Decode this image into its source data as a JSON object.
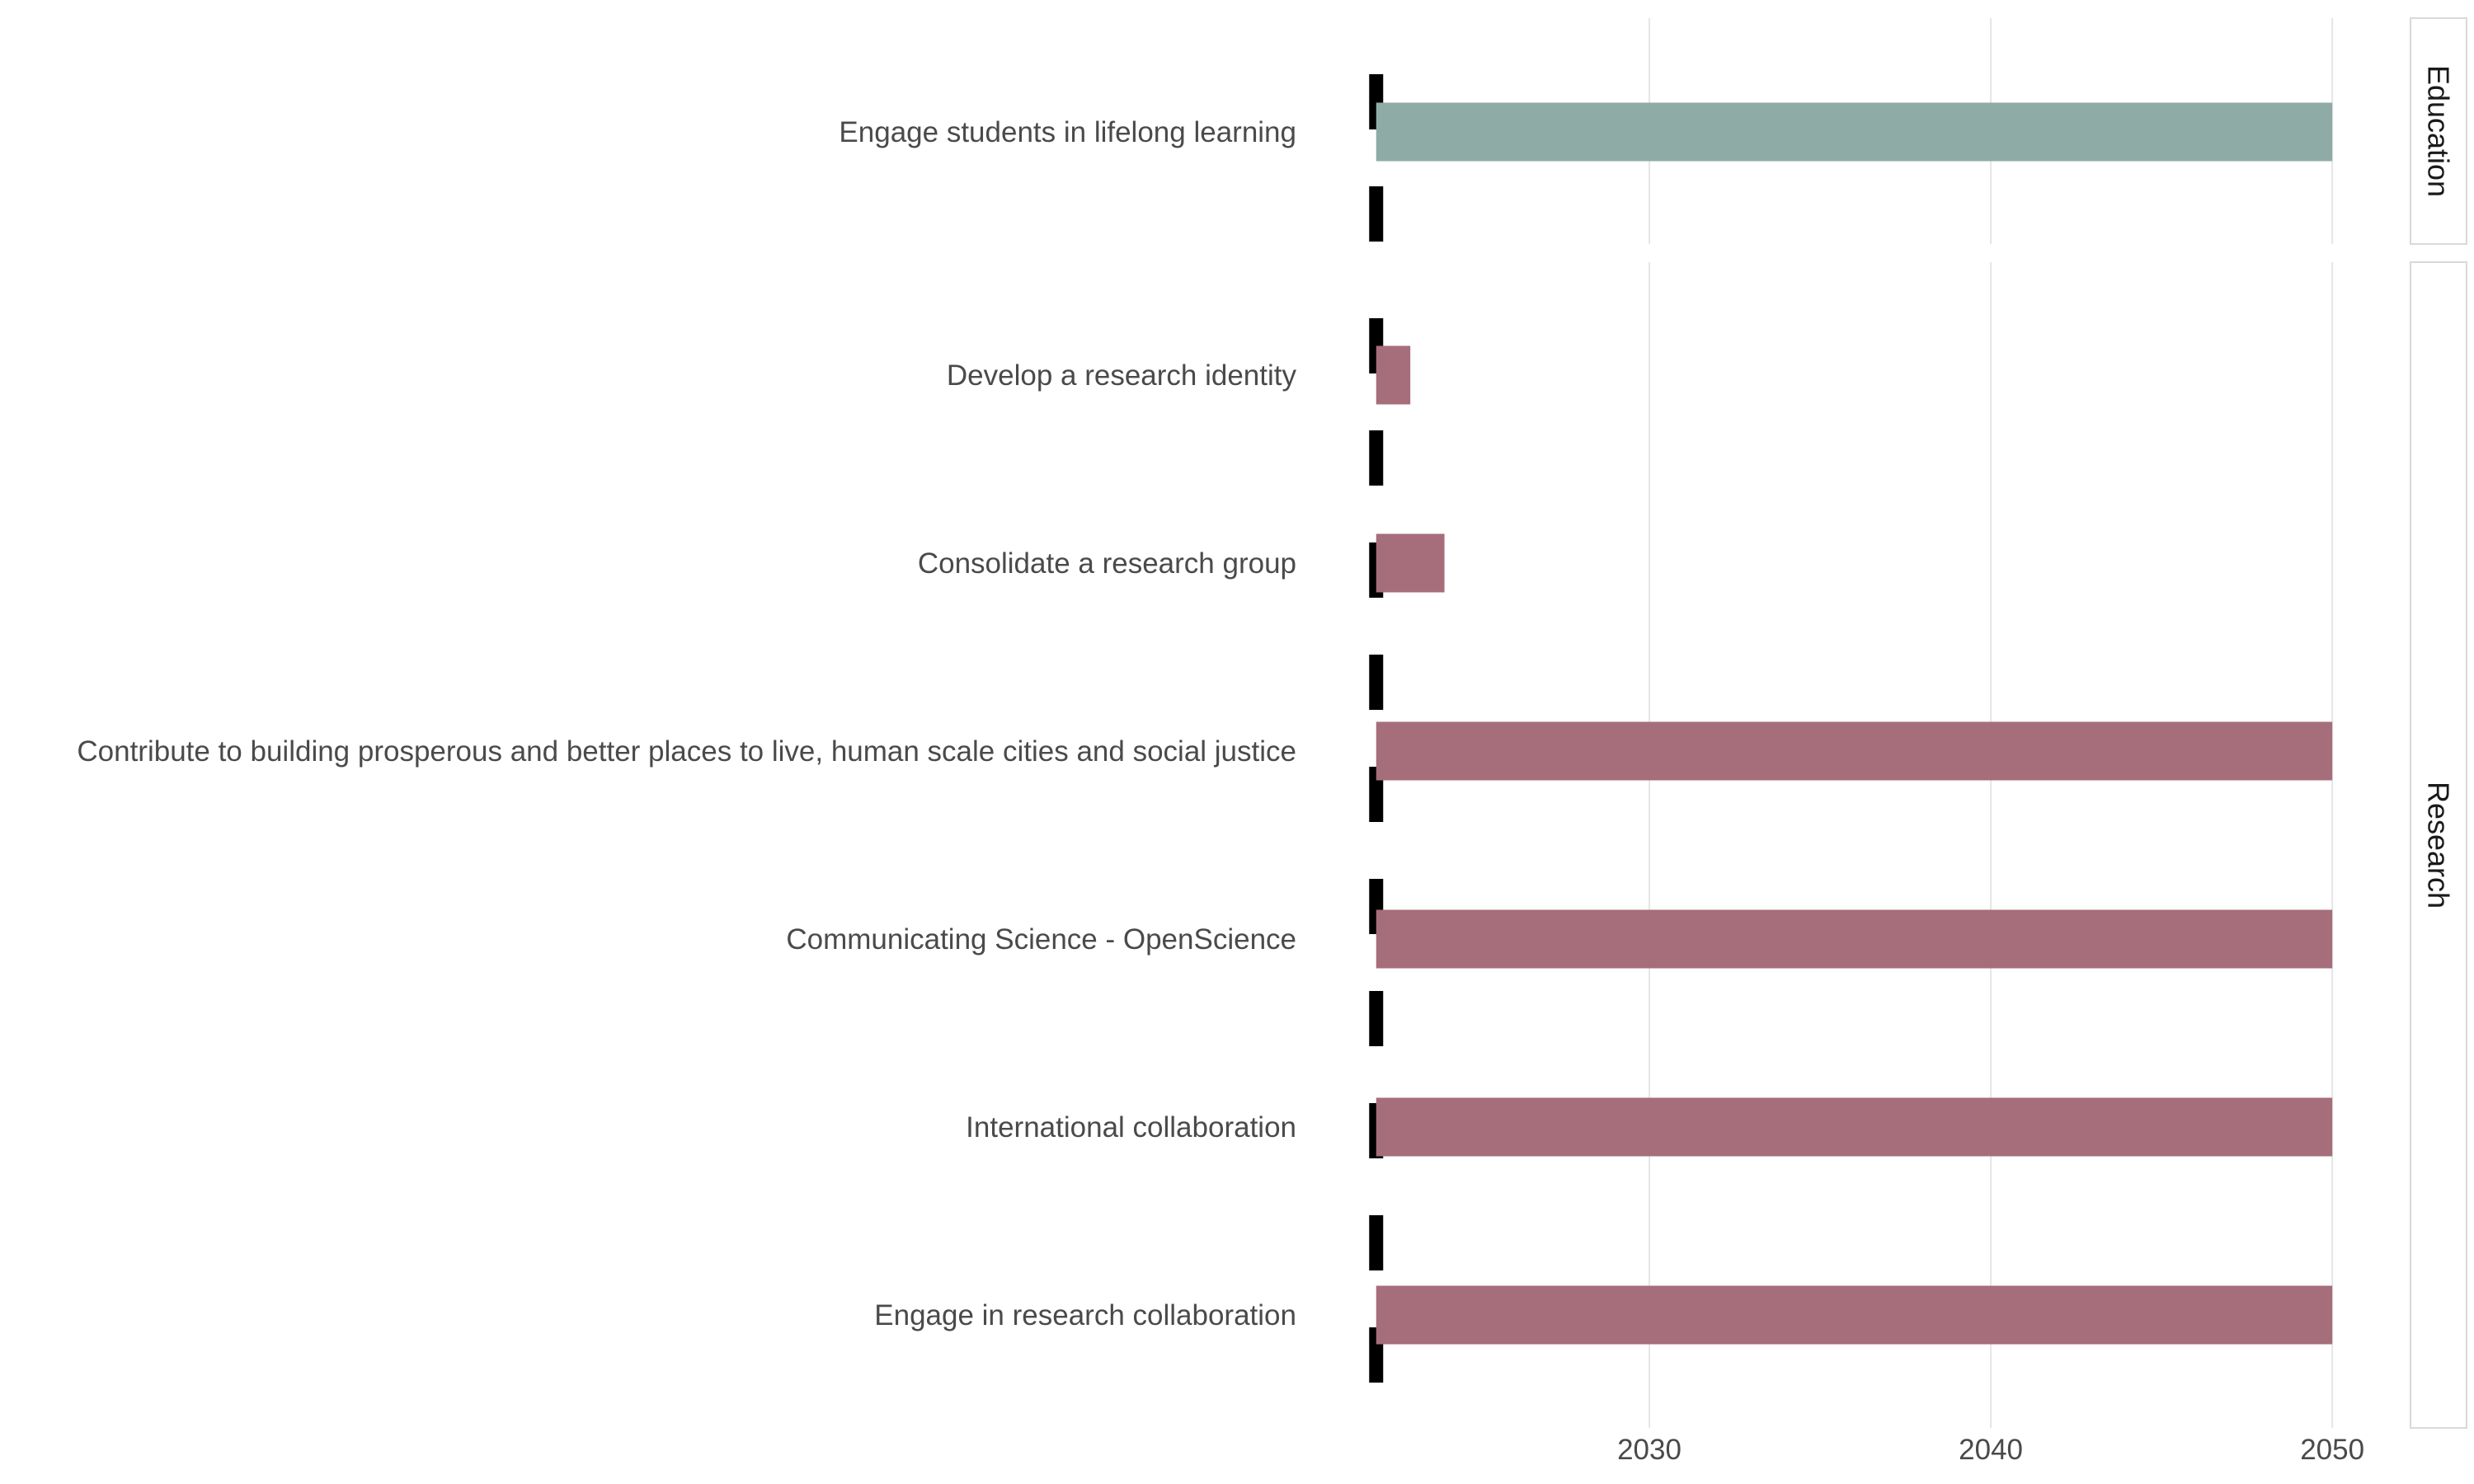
{
  "chart_data": {
    "type": "bar",
    "orientation": "horizontal",
    "title": "",
    "xlabel": "",
    "ylabel": "",
    "xlim": [
      2020.75,
      2051.3
    ],
    "xticks": [
      2030,
      2040,
      2050
    ],
    "grid": true,
    "legend": "none",
    "start_marker": 2022,
    "facets": [
      {
        "name": "Education",
        "color": "#8eaca5",
        "rows": [
          {
            "label": "Engage students in lifelong learning",
            "start": 2022,
            "end": 2050
          }
        ]
      },
      {
        "name": "Research",
        "color": "#a56e7a",
        "rows": [
          {
            "label": "Develop a research identity",
            "start": 2022,
            "end": 2023
          },
          {
            "label": "Consolidate a research group",
            "start": 2022,
            "end": 2024
          },
          {
            "label": "Contribute to building prosperous and better places to live, human scale cities and social justice",
            "start": 2022,
            "end": 2050
          },
          {
            "label": "Communicating Science - OpenScience",
            "start": 2022,
            "end": 2050
          },
          {
            "label": "International collaboration",
            "start": 2022,
            "end": 2050
          },
          {
            "label": "Engage in research collaboration",
            "start": 2022,
            "end": 2050
          }
        ]
      }
    ]
  }
}
